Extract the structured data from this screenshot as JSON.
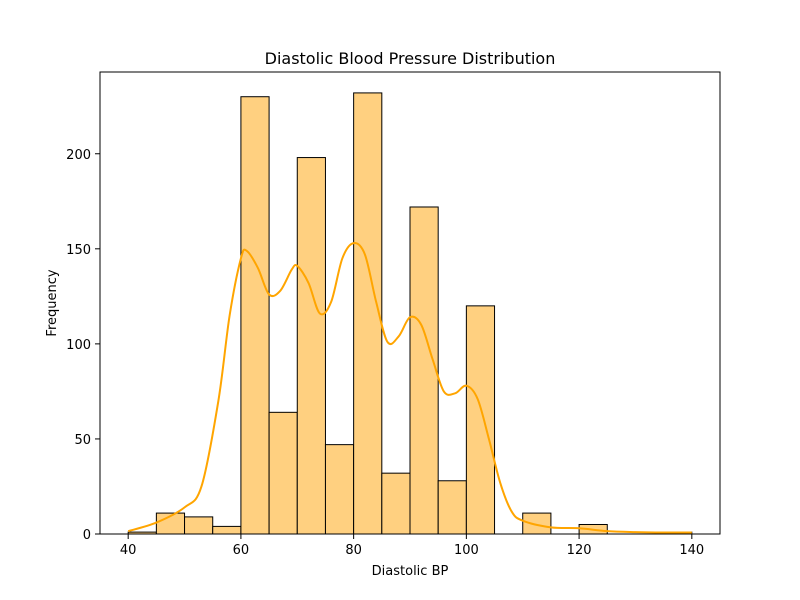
{
  "chart_data": {
    "type": "bar",
    "title": "Diastolic Blood Pressure Distribution",
    "xlabel": "Diastolic BP",
    "ylabel": "Frequency",
    "xlim": [
      35,
      145
    ],
    "ylim": [
      0,
      243
    ],
    "xticks": [
      40,
      60,
      80,
      100,
      120,
      140
    ],
    "yticks": [
      0,
      50,
      100,
      150,
      200
    ],
    "grid": false,
    "bar_color": "#ffd080",
    "bar_edge_color": "#000000",
    "line_color": "#ffa500",
    "bins": [
      {
        "start": 40,
        "end": 45,
        "count": 1
      },
      {
        "start": 45,
        "end": 50,
        "count": 11
      },
      {
        "start": 50,
        "end": 55,
        "count": 9
      },
      {
        "start": 55,
        "end": 60,
        "count": 4
      },
      {
        "start": 60,
        "end": 65,
        "count": 230
      },
      {
        "start": 65,
        "end": 70,
        "count": 64
      },
      {
        "start": 70,
        "end": 75,
        "count": 198
      },
      {
        "start": 75,
        "end": 80,
        "count": 47
      },
      {
        "start": 80,
        "end": 85,
        "count": 232
      },
      {
        "start": 85,
        "end": 90,
        "count": 32
      },
      {
        "start": 90,
        "end": 95,
        "count": 172
      },
      {
        "start": 95,
        "end": 100,
        "count": 28
      },
      {
        "start": 100,
        "end": 105,
        "count": 120
      },
      {
        "start": 105,
        "end": 110,
        "count": 0
      },
      {
        "start": 110,
        "end": 115,
        "count": 11
      },
      {
        "start": 115,
        "end": 120,
        "count": 0
      },
      {
        "start": 120,
        "end": 125,
        "count": 5
      },
      {
        "start": 125,
        "end": 130,
        "count": 0
      },
      {
        "start": 130,
        "end": 135,
        "count": 0
      },
      {
        "start": 135,
        "end": 140,
        "count": 1
      }
    ],
    "kde": {
      "x": [
        40,
        45,
        50,
        53,
        56,
        58,
        60,
        61,
        63,
        65,
        67,
        69,
        70,
        72,
        74,
        76,
        78,
        80,
        82,
        84,
        86,
        88,
        90,
        92,
        94,
        96,
        98,
        100,
        102,
        104,
        106,
        108,
        110,
        115,
        120,
        125,
        130,
        135,
        140
      ],
      "y": [
        1.5,
        6,
        14,
        25,
        70,
        115,
        145,
        149,
        140,
        126,
        128,
        139,
        141,
        132,
        116,
        122,
        145,
        153,
        147,
        122,
        101,
        104,
        114,
        110,
        92,
        75,
        74,
        78,
        71,
        50,
        27,
        12,
        7,
        3.5,
        3,
        1.5,
        1,
        0.8,
        0.8
      ]
    }
  }
}
